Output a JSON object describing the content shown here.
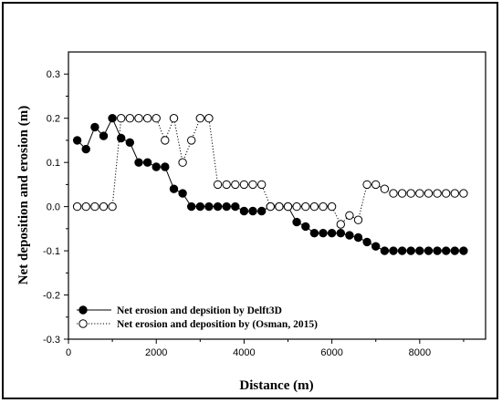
{
  "chart_data": {
    "type": "line",
    "xlabel": "Distance (m)",
    "ylabel": "Net deposition and erosion (m)",
    "xlim": [
      0,
      9500
    ],
    "ylim": [
      -0.3,
      0.35
    ],
    "x_ticks": [
      0,
      2000,
      4000,
      6000,
      8000
    ],
    "x_tick_labels": [
      "0",
      "2000",
      "4000",
      "6000",
      "8000"
    ],
    "y_ticks": [
      -0.3,
      -0.2,
      -0.1,
      0.0,
      0.1,
      0.2,
      0.3
    ],
    "y_tick_labels": [
      "-0.3",
      "-0.2",
      "-0.1",
      "0.0",
      "0.1",
      "0.2",
      "0.3"
    ],
    "grid": false,
    "legend_position": "bottom-left",
    "series": [
      {
        "name": "Net erosion and depsition by Delft3D",
        "marker": "filled-circle",
        "line_style": "solid",
        "color": "#000000",
        "x": [
          200,
          400,
          600,
          800,
          1000,
          1200,
          1400,
          1600,
          1800,
          2000,
          2200,
          2400,
          2600,
          2800,
          3000,
          3200,
          3400,
          3600,
          3800,
          4000,
          4200,
          4400,
          4600,
          4800,
          5000,
          5200,
          5400,
          5600,
          5800,
          6000,
          6200,
          6400,
          6600,
          6800,
          7000,
          7200,
          7400,
          7600,
          7800,
          8000,
          8200,
          8400,
          8600,
          8800,
          9000
        ],
        "y": [
          0.15,
          0.13,
          0.18,
          0.16,
          0.2,
          0.155,
          0.145,
          0.1,
          0.1,
          0.09,
          0.09,
          0.04,
          0.03,
          0.0,
          0.0,
          0.0,
          0.0,
          0.0,
          0.0,
          -0.01,
          -0.01,
          -0.01,
          0.0,
          0.0,
          0.0,
          -0.035,
          -0.045,
          -0.06,
          -0.06,
          -0.06,
          -0.06,
          -0.065,
          -0.07,
          -0.08,
          -0.09,
          -0.1,
          -0.1,
          -0.1,
          -0.1,
          -0.1,
          -0.1,
          -0.1,
          -0.1,
          -0.1,
          -0.1
        ]
      },
      {
        "name": "Net erosion and deposition by (Osman, 2015)",
        "marker": "open-circle",
        "line_style": "dotted",
        "color": "#000000",
        "x": [
          200,
          400,
          600,
          800,
          1000,
          1200,
          1400,
          1600,
          1800,
          2000,
          2200,
          2400,
          2600,
          2800,
          3000,
          3200,
          3400,
          3600,
          3800,
          4000,
          4200,
          4400,
          4600,
          4800,
          5000,
          5200,
          5400,
          5600,
          5800,
          6000,
          6200,
          6400,
          6600,
          6800,
          7000,
          7200,
          7400,
          7600,
          7800,
          8000,
          8200,
          8400,
          8600,
          8800,
          9000
        ],
        "y": [
          0.0,
          0.0,
          0.0,
          0.0,
          0.0,
          0.2,
          0.2,
          0.2,
          0.2,
          0.2,
          0.15,
          0.2,
          0.1,
          0.15,
          0.2,
          0.2,
          0.05,
          0.05,
          0.05,
          0.05,
          0.05,
          0.05,
          0.0,
          0.0,
          0.0,
          0.0,
          0.0,
          0.0,
          0.0,
          0.0,
          -0.04,
          -0.02,
          -0.03,
          0.05,
          0.05,
          0.04,
          0.03,
          0.03,
          0.03,
          0.03,
          0.03,
          0.03,
          0.03,
          0.03,
          0.03
        ]
      }
    ]
  }
}
